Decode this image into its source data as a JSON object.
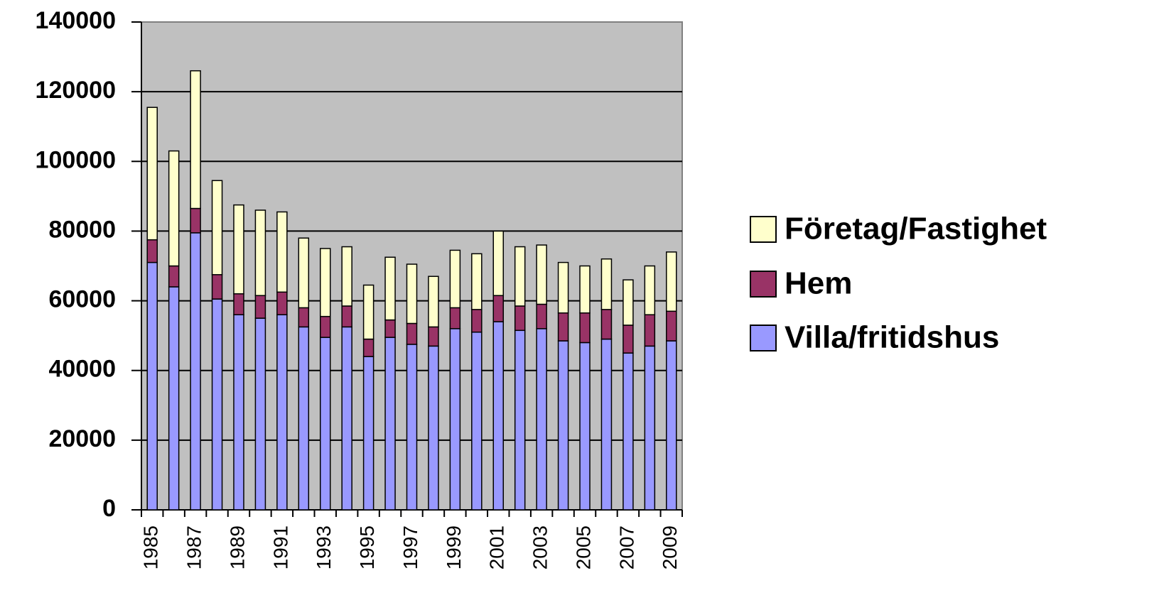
{
  "chart_data": {
    "type": "stacked-bar",
    "categories": [
      "1985",
      null,
      "1987",
      null,
      "1989",
      null,
      "1991",
      null,
      "1993",
      null,
      "1995",
      null,
      "1997",
      null,
      "1999",
      null,
      "2001",
      null,
      "2003",
      null,
      "2005",
      null,
      "2007",
      null,
      "2009"
    ],
    "series": [
      {
        "name": "Villa/fritidshus",
        "color": "#9999ff",
        "values": [
          71000,
          64000,
          79500,
          60500,
          56000,
          55000,
          56000,
          52500,
          49500,
          52500,
          44000,
          49500,
          47500,
          47000,
          52000,
          51000,
          54000,
          51500,
          52000,
          48500,
          48000,
          49000,
          45000,
          47000,
          48500
        ]
      },
      {
        "name": "Hem",
        "color": "#993366",
        "values": [
          6500,
          6000,
          7000,
          7000,
          6000,
          6500,
          6500,
          5500,
          6000,
          6000,
          5000,
          5000,
          6000,
          5500,
          6000,
          6500,
          7500,
          7000,
          7000,
          8000,
          8500,
          8500,
          8000,
          9000,
          8500
        ]
      },
      {
        "name": "Företag/Fastighet",
        "color": "#ffffcc",
        "values": [
          38000,
          33000,
          39500,
          27000,
          25500,
          24500,
          23000,
          20000,
          19500,
          17000,
          15500,
          18000,
          17000,
          14500,
          16500,
          16000,
          18500,
          17000,
          17000,
          14500,
          13500,
          14500,
          13000,
          14000,
          17000
        ]
      }
    ],
    "ylim": [
      0,
      140000
    ],
    "yticks": [
      0,
      20000,
      40000,
      60000,
      80000,
      100000,
      120000,
      140000
    ],
    "grid": true,
    "plot_background": "#c0c0c0",
    "legend": "right"
  }
}
